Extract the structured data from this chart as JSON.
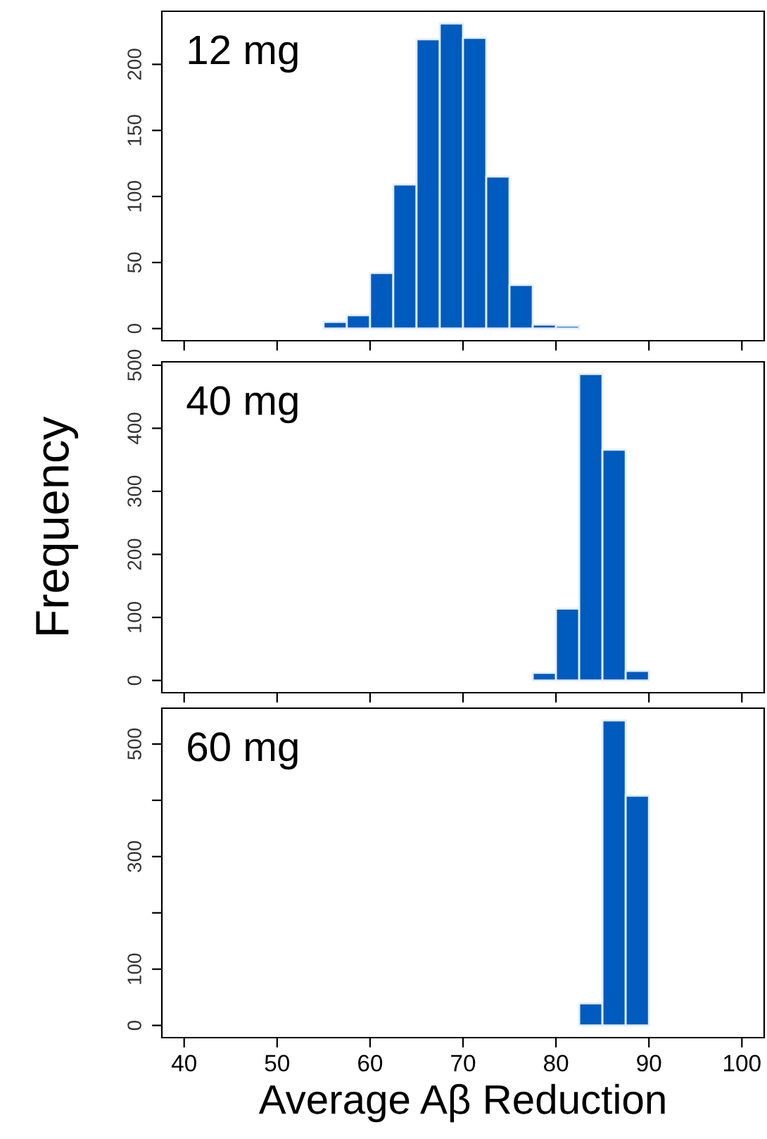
{
  "chart_data": [
    {
      "type": "histogram",
      "annotations": [
        "12 mg"
      ],
      "bins": [
        55,
        57.5,
        60,
        62.5,
        65,
        67.5,
        70,
        72.5,
        75,
        77.5,
        80,
        82.5
      ],
      "values": [
        5,
        10,
        42,
        109,
        219,
        231,
        220,
        115,
        33,
        3,
        2
      ],
      "color": "#005bbf",
      "xlim": [
        37.6,
        102.4
      ],
      "xticks": [
        40,
        50,
        60,
        70,
        80,
        90,
        100
      ],
      "ylim": [
        -9.2,
        240.2
      ],
      "yticks": [
        0,
        50,
        100,
        150,
        200
      ],
      "tick_labels": "y",
      "grid": false,
      "legend": false
    },
    {
      "type": "histogram",
      "annotations": [
        "40 mg"
      ],
      "ylabel": "Frequency",
      "bins": [
        77.5,
        80,
        82.5,
        85,
        87.5,
        90
      ],
      "values": [
        12,
        114,
        486,
        366,
        15
      ],
      "color": "#005bbf",
      "xlim": [
        37.6,
        102.4
      ],
      "xticks": [
        40,
        50,
        60,
        70,
        80,
        90,
        100
      ],
      "ylim": [
        -19.4,
        505.4
      ],
      "yticks": [
        0,
        100,
        200,
        300,
        400,
        500
      ],
      "tick_labels": "y",
      "grid": false,
      "legend": false
    },
    {
      "type": "histogram",
      "annotations": [
        "60 mg"
      ],
      "xlabel": "Average Aβ Reduction",
      "bins": [
        82.5,
        85,
        87.5,
        90
      ],
      "values": [
        39,
        542,
        408
      ],
      "color": "#005bbf",
      "xlim": [
        37.6,
        102.4
      ],
      "xticks": [
        40,
        50,
        60,
        70,
        80,
        90,
        100
      ],
      "ylim": [
        -21.7,
        563.7
      ],
      "yticks": [
        0,
        100,
        {
          "value": 200,
          "label": null
        },
        300,
        {
          "value": 400,
          "label": null
        },
        500
      ],
      "grid": false,
      "legend": false
    }
  ]
}
